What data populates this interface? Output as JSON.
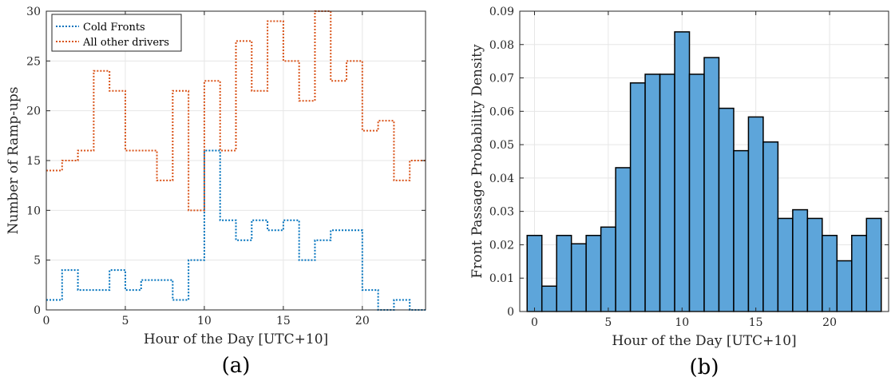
{
  "chart_data": [
    {
      "type": "line",
      "step": true,
      "panel_label": "(a)",
      "xlabel": "Hour of the Day [UTC+10]",
      "ylabel": "Number of Ramp-ups",
      "xlim": [
        0,
        24
      ],
      "ylim": [
        0,
        30
      ],
      "xticks": [
        0,
        5,
        10,
        15,
        20
      ],
      "yticks": [
        0,
        5,
        10,
        15,
        20,
        25,
        30
      ],
      "grid": true,
      "legend_position": "top-left",
      "x": [
        0,
        1,
        2,
        3,
        4,
        5,
        6,
        7,
        8,
        9,
        10,
        11,
        12,
        13,
        14,
        15,
        16,
        17,
        18,
        19,
        20,
        21,
        22,
        23
      ],
      "series": [
        {
          "name": "Cold Fronts",
          "color": "#0072BD",
          "values": [
            1,
            4,
            2,
            2,
            4,
            2,
            3,
            3,
            1,
            5,
            16,
            9,
            7,
            9,
            8,
            9,
            5,
            7,
            8,
            8,
            2,
            0,
            1,
            0
          ]
        },
        {
          "name": "All other drivers",
          "color": "#D95319",
          "values": [
            14,
            15,
            16,
            24,
            22,
            16,
            16,
            13,
            22,
            10,
            23,
            16,
            27,
            22,
            29,
            25,
            21,
            30,
            23,
            25,
            18,
            19,
            13,
            15
          ]
        }
      ]
    },
    {
      "type": "bar",
      "histogram": true,
      "panel_label": "(b)",
      "xlabel": "Hour of the Day [UTC+10]",
      "ylabel": "Front Passage Probability Density",
      "xlim": [
        -1,
        24
      ],
      "ylim": [
        0,
        0.09
      ],
      "xticks": [
        0,
        5,
        10,
        15,
        20
      ],
      "yticks": [
        0,
        0.01,
        0.02,
        0.03,
        0.04,
        0.05,
        0.06,
        0.07,
        0.08,
        0.09
      ],
      "grid": true,
      "bar_color": "#5DA5DA",
      "edge_color": "#000000",
      "categories": [
        0,
        1,
        2,
        3,
        4,
        5,
        6,
        7,
        8,
        9,
        10,
        11,
        12,
        13,
        14,
        15,
        16,
        17,
        18,
        19,
        20,
        21,
        22,
        23
      ],
      "values": [
        0.0228,
        0.0076,
        0.0228,
        0.0203,
        0.0228,
        0.0253,
        0.0431,
        0.0685,
        0.0711,
        0.0711,
        0.0838,
        0.0711,
        0.0761,
        0.0609,
        0.0482,
        0.0583,
        0.0508,
        0.0279,
        0.0305,
        0.0279,
        0.0228,
        0.0152,
        0.0228,
        0.0279
      ]
    }
  ]
}
